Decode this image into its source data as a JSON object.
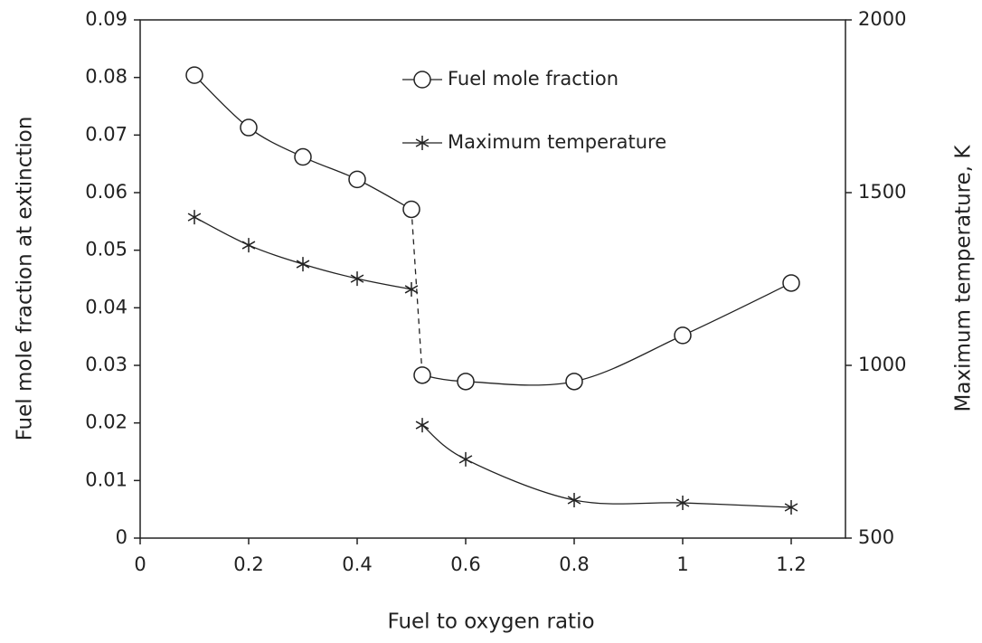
{
  "chart_data": {
    "type": "line",
    "x_label": "Fuel to oxygen ratio",
    "y_label": "Fuel mole fraction at extinction",
    "y2_label": "Maximum temperature, K",
    "x": [
      0.1,
      0.2,
      0.3,
      0.4,
      0.5,
      0.52,
      0.6,
      0.8,
      1.0,
      1.2
    ],
    "series": [
      {
        "name": "Fuel mole fraction",
        "color": "#222222",
        "marker": "circle",
        "dash_segment_after": 4,
        "values": [
          0.0804,
          0.0713,
          0.0662,
          0.0623,
          0.0571,
          0.0283,
          0.0272,
          0.0272,
          0.0352,
          0.0443
        ]
      },
      {
        "name": "Maximum temperature",
        "color": "#222222",
        "marker": "star",
        "axis": "y2",
        "gap_after": 4,
        "values": [
          1429,
          1348,
          1293,
          1251,
          1220,
          827,
          728,
          610,
          602,
          589
        ]
      }
    ],
    "xlim": [
      0,
      1.3
    ],
    "xticks": [
      0,
      0.2,
      0.4,
      0.6,
      0.8,
      1,
      1.2
    ],
    "ylim": [
      0,
      0.09
    ],
    "yticks": [
      0,
      0.01,
      0.02,
      0.03,
      0.04,
      0.05,
      0.06,
      0.07,
      0.08,
      0.09
    ],
    "y2lim": [
      500,
      2000
    ],
    "y2ticks": [
      500,
      1000,
      1500,
      2000
    ],
    "legend": "top"
  }
}
